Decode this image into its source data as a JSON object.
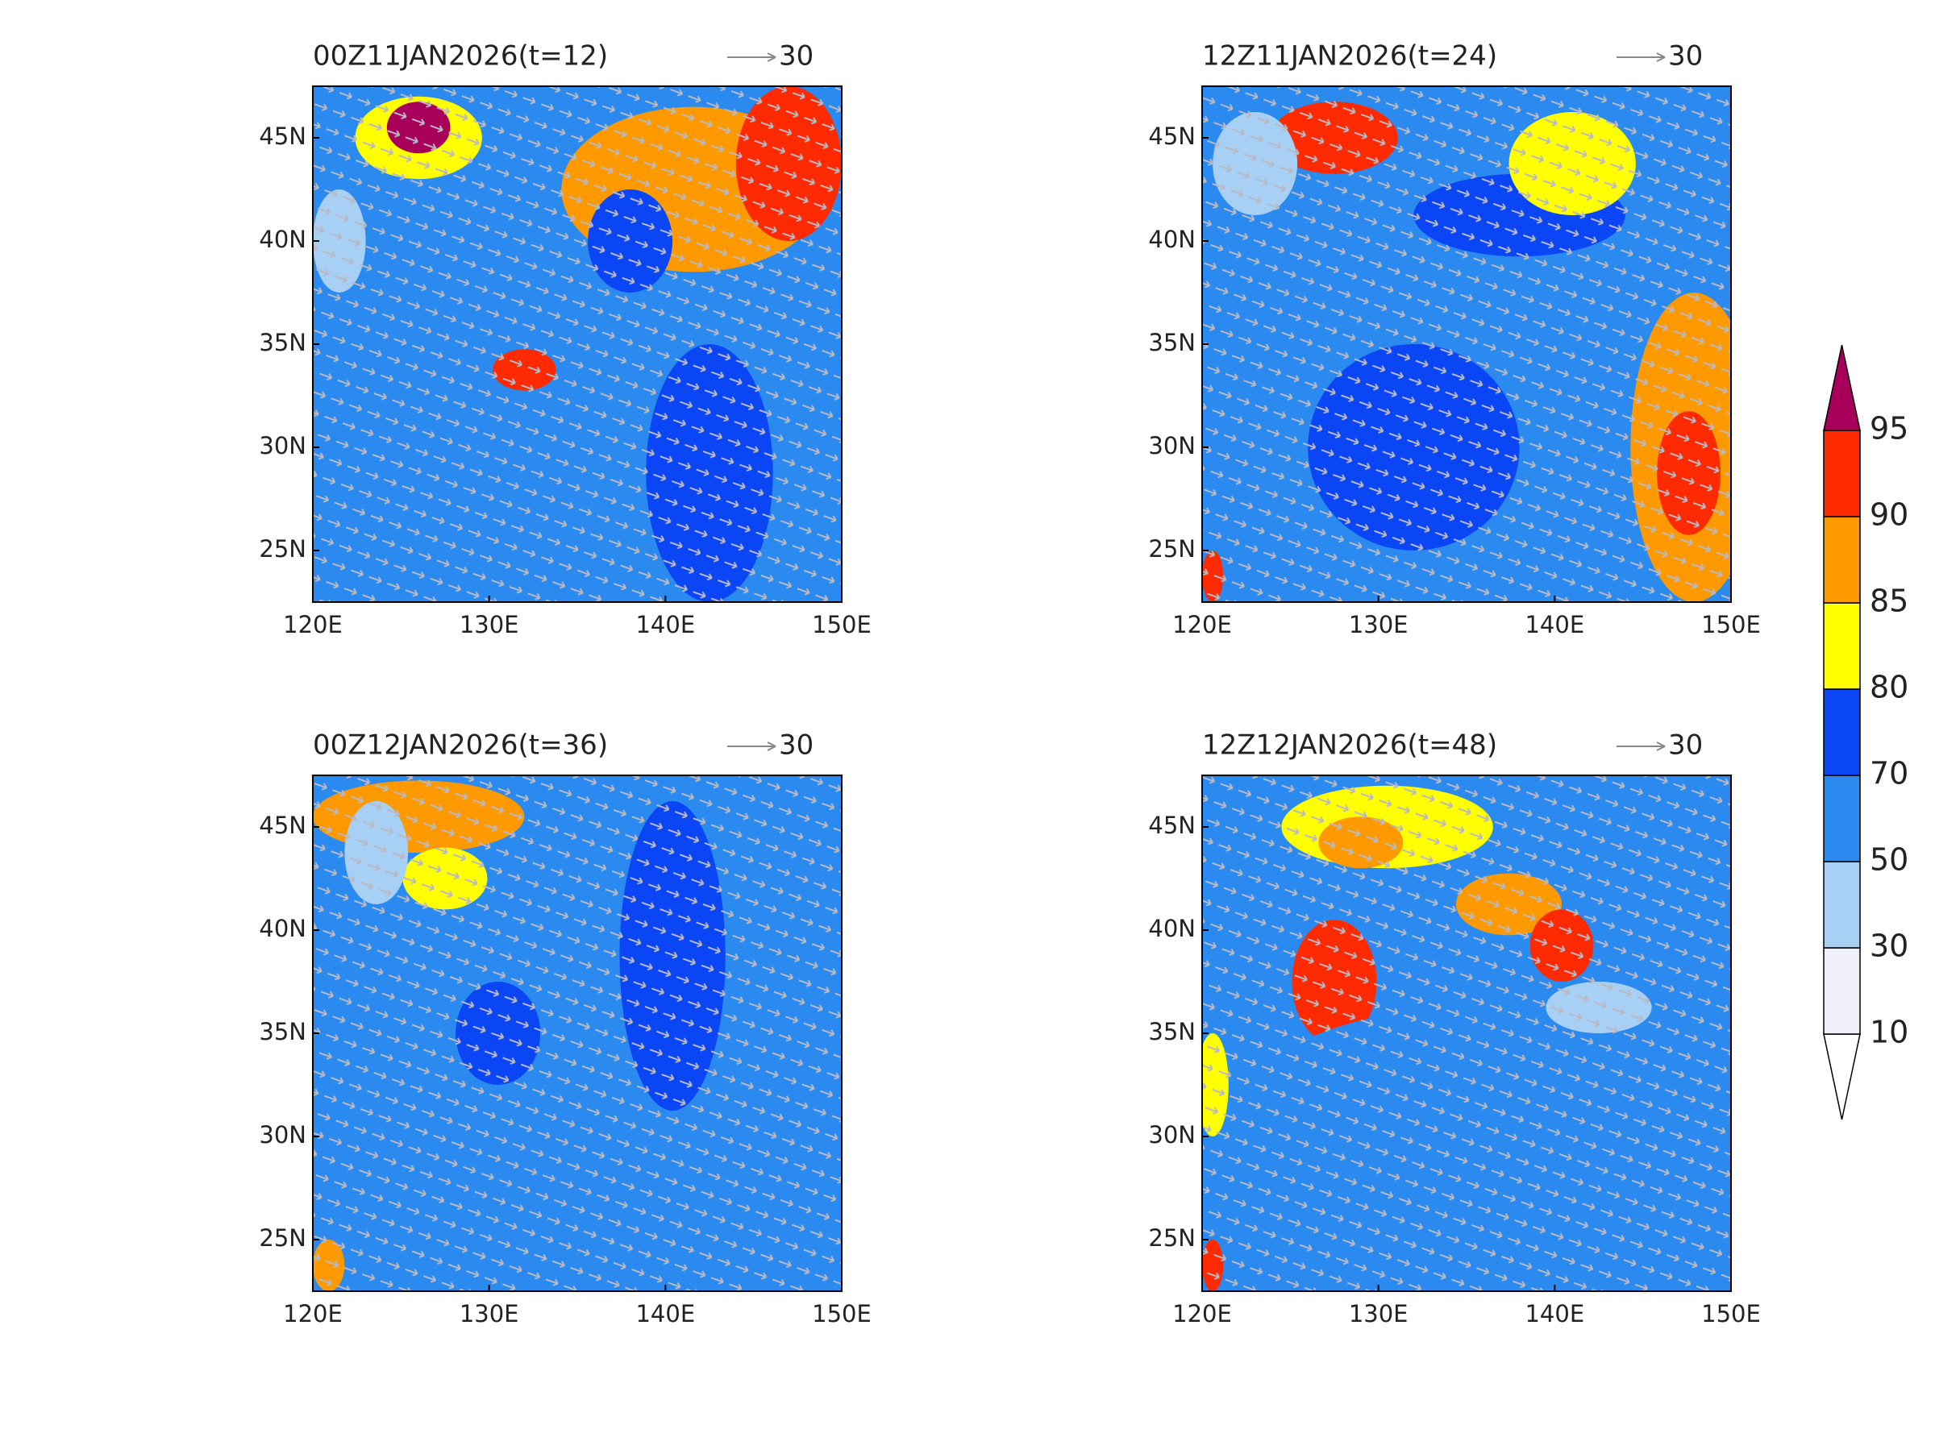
{
  "panels": [
    {
      "title": "00Z11JAN2026(t=12)",
      "ref_vector": "30"
    },
    {
      "title": "12Z11JAN2026(t=24)",
      "ref_vector": "30"
    },
    {
      "title": "00Z12JAN2026(t=36)",
      "ref_vector": "30"
    },
    {
      "title": "12Z12JAN2026(t=48)",
      "ref_vector": "30"
    }
  ],
  "axes": {
    "x_labels": [
      "120E",
      "130E",
      "140E",
      "150E"
    ],
    "y_labels": [
      "45N",
      "40N",
      "35N",
      "30N",
      "25N"
    ]
  },
  "colorbar": {
    "levels": [
      10,
      30,
      50,
      70,
      80,
      85,
      90,
      95
    ],
    "colors": [
      "#ffffff",
      "#f0f0fa",
      "#a8d0f5",
      "#2b8af0",
      "#0a46f5",
      "#ffff00",
      "#ff9900",
      "#ff2a00",
      "#a8005a"
    ]
  }
}
